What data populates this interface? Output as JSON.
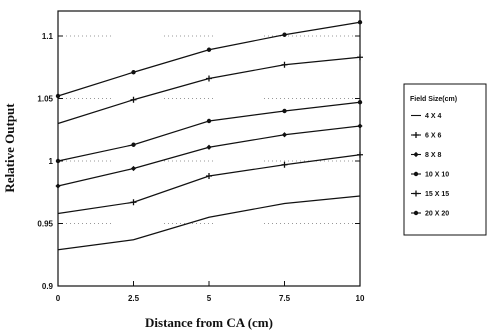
{
  "chart_data": {
    "type": "line",
    "xlabel": "Distance from CA (cm)",
    "ylabel": "Relative Output",
    "x": [
      0,
      2.5,
      5,
      7.5,
      10
    ],
    "xticks": [
      "0",
      "2.5",
      "5",
      "7.5",
      "10"
    ],
    "yticks": [
      "0.9",
      "0.95",
      "1",
      "1.05",
      "1.1"
    ],
    "xlim": [
      0,
      10
    ],
    "ylim": [
      0.9,
      1.12
    ],
    "grid": "partial dotted",
    "legend_title": "Field Size(cm)",
    "legend_position": "right",
    "series": [
      {
        "name": "4 X 4",
        "marker": "none",
        "values": [
          0.929,
          0.937,
          0.955,
          0.966,
          0.972
        ]
      },
      {
        "name": "6 X 6",
        "marker": "plus",
        "values": [
          0.958,
          0.967,
          0.988,
          0.997,
          1.005
        ]
      },
      {
        "name": "8 X 8",
        "marker": "diamond",
        "values": [
          0.98,
          0.994,
          1.011,
          1.021,
          1.028
        ]
      },
      {
        "name": "10 X 10",
        "marker": "dot",
        "values": [
          1.0,
          1.013,
          1.032,
          1.04,
          1.047
        ]
      },
      {
        "name": "15 X 15",
        "marker": "plus",
        "values": [
          1.03,
          1.049,
          1.066,
          1.077,
          1.083
        ]
      },
      {
        "name": "20 X 20",
        "marker": "dot",
        "values": [
          1.052,
          1.071,
          1.089,
          1.101,
          1.111
        ]
      }
    ]
  }
}
